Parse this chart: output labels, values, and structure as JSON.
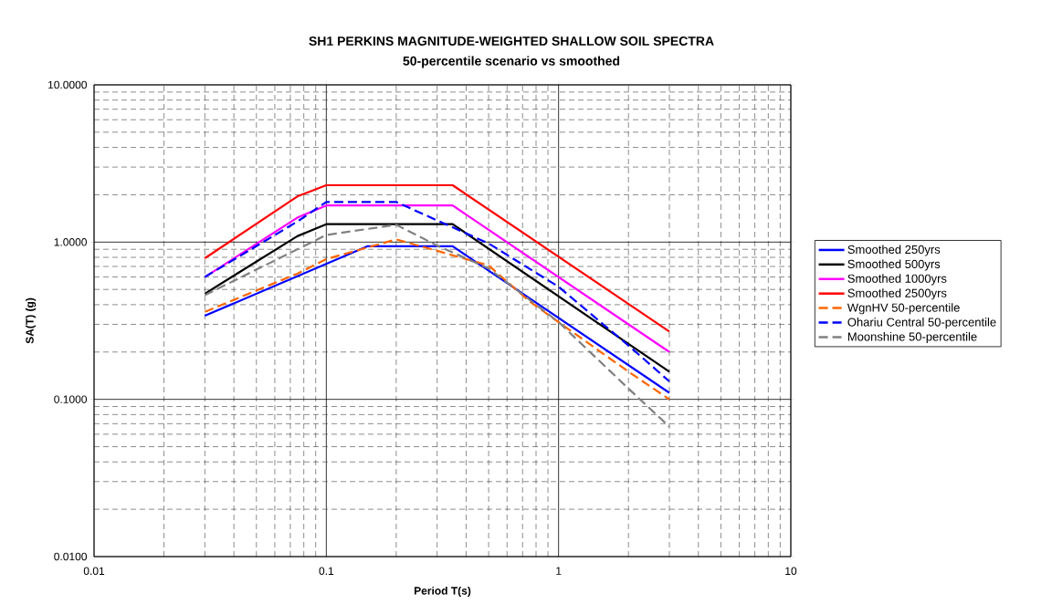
{
  "chart_data": {
    "type": "line",
    "title": "SH1 PERKINS MAGNITUDE-WEIGHTED SHALLOW SOIL SPECTRA",
    "subtitle": "50-percentile scenario vs smoothed",
    "xlabel": "Period T(s)",
    "ylabel": "SA(T) (g)",
    "log": "xy",
    "grid": true,
    "legend": "right",
    "xlim": [
      0.01,
      10
    ],
    "ylim": [
      0.01,
      10
    ],
    "xticks": [
      0.01,
      0.1,
      1,
      10
    ],
    "yticks": [
      {
        "value": 0.01,
        "label": "0.0100"
      },
      {
        "value": 0.1,
        "label": "0.1000"
      },
      {
        "value": 1,
        "label": "1.0000"
      },
      {
        "value": 10,
        "label": "10.0000"
      }
    ],
    "series": [
      {
        "name": "Smoothed 250yrs",
        "color": "#0000ff",
        "line_style": "solid",
        "x": [
          0.03,
          0.15,
          0.35,
          3
        ],
        "values": [
          0.34,
          0.94,
          0.94,
          0.11
        ]
      },
      {
        "name": "Smoothed 500yrs",
        "color": "#000000",
        "line_style": "solid",
        "x": [
          0.03,
          0.075,
          0.1,
          0.35,
          3
        ],
        "values": [
          0.47,
          1.09,
          1.3,
          1.3,
          0.15
        ]
      },
      {
        "name": "Smoothed 1000yrs",
        "color": "#ff00ff",
        "line_style": "solid",
        "x": [
          0.03,
          0.075,
          0.1,
          0.35,
          3
        ],
        "values": [
          0.6,
          1.43,
          1.71,
          1.71,
          0.2
        ]
      },
      {
        "name": "Smoothed  2500yrs",
        "color": "#ff0000",
        "line_style": "solid",
        "x": [
          0.03,
          0.075,
          0.1,
          0.35,
          3
        ],
        "values": [
          0.79,
          1.95,
          2.3,
          2.3,
          0.27
        ]
      },
      {
        "name": "WgnHV 50-percentile",
        "color": "#ff6600",
        "line_style": "dashed",
        "x": [
          0.03,
          0.075,
          0.1,
          0.2,
          0.3,
          0.5,
          0.75,
          1,
          2,
          3
        ],
        "values": [
          0.36,
          0.63,
          0.78,
          1.04,
          0.88,
          0.71,
          0.42,
          0.31,
          0.15,
          0.1
        ]
      },
      {
        "name": "Ohariu Central 50-percentile",
        "color": "#0000ff",
        "line_style": "dashed",
        "x": [
          0.03,
          0.075,
          0.1,
          0.2,
          0.5,
          1,
          2,
          3
        ],
        "values": [
          0.6,
          1.35,
          1.8,
          1.8,
          0.98,
          0.52,
          0.22,
          0.13
        ]
      },
      {
        "name": "Moonshine 50-percentile",
        "color": "#808080",
        "line_style": "dashed",
        "x": [
          0.03,
          0.1,
          0.2,
          0.3,
          0.5,
          1,
          2,
          3
        ],
        "values": [
          0.46,
          1.11,
          1.29,
          0.95,
          0.68,
          0.31,
          0.117,
          0.067
        ]
      }
    ]
  }
}
